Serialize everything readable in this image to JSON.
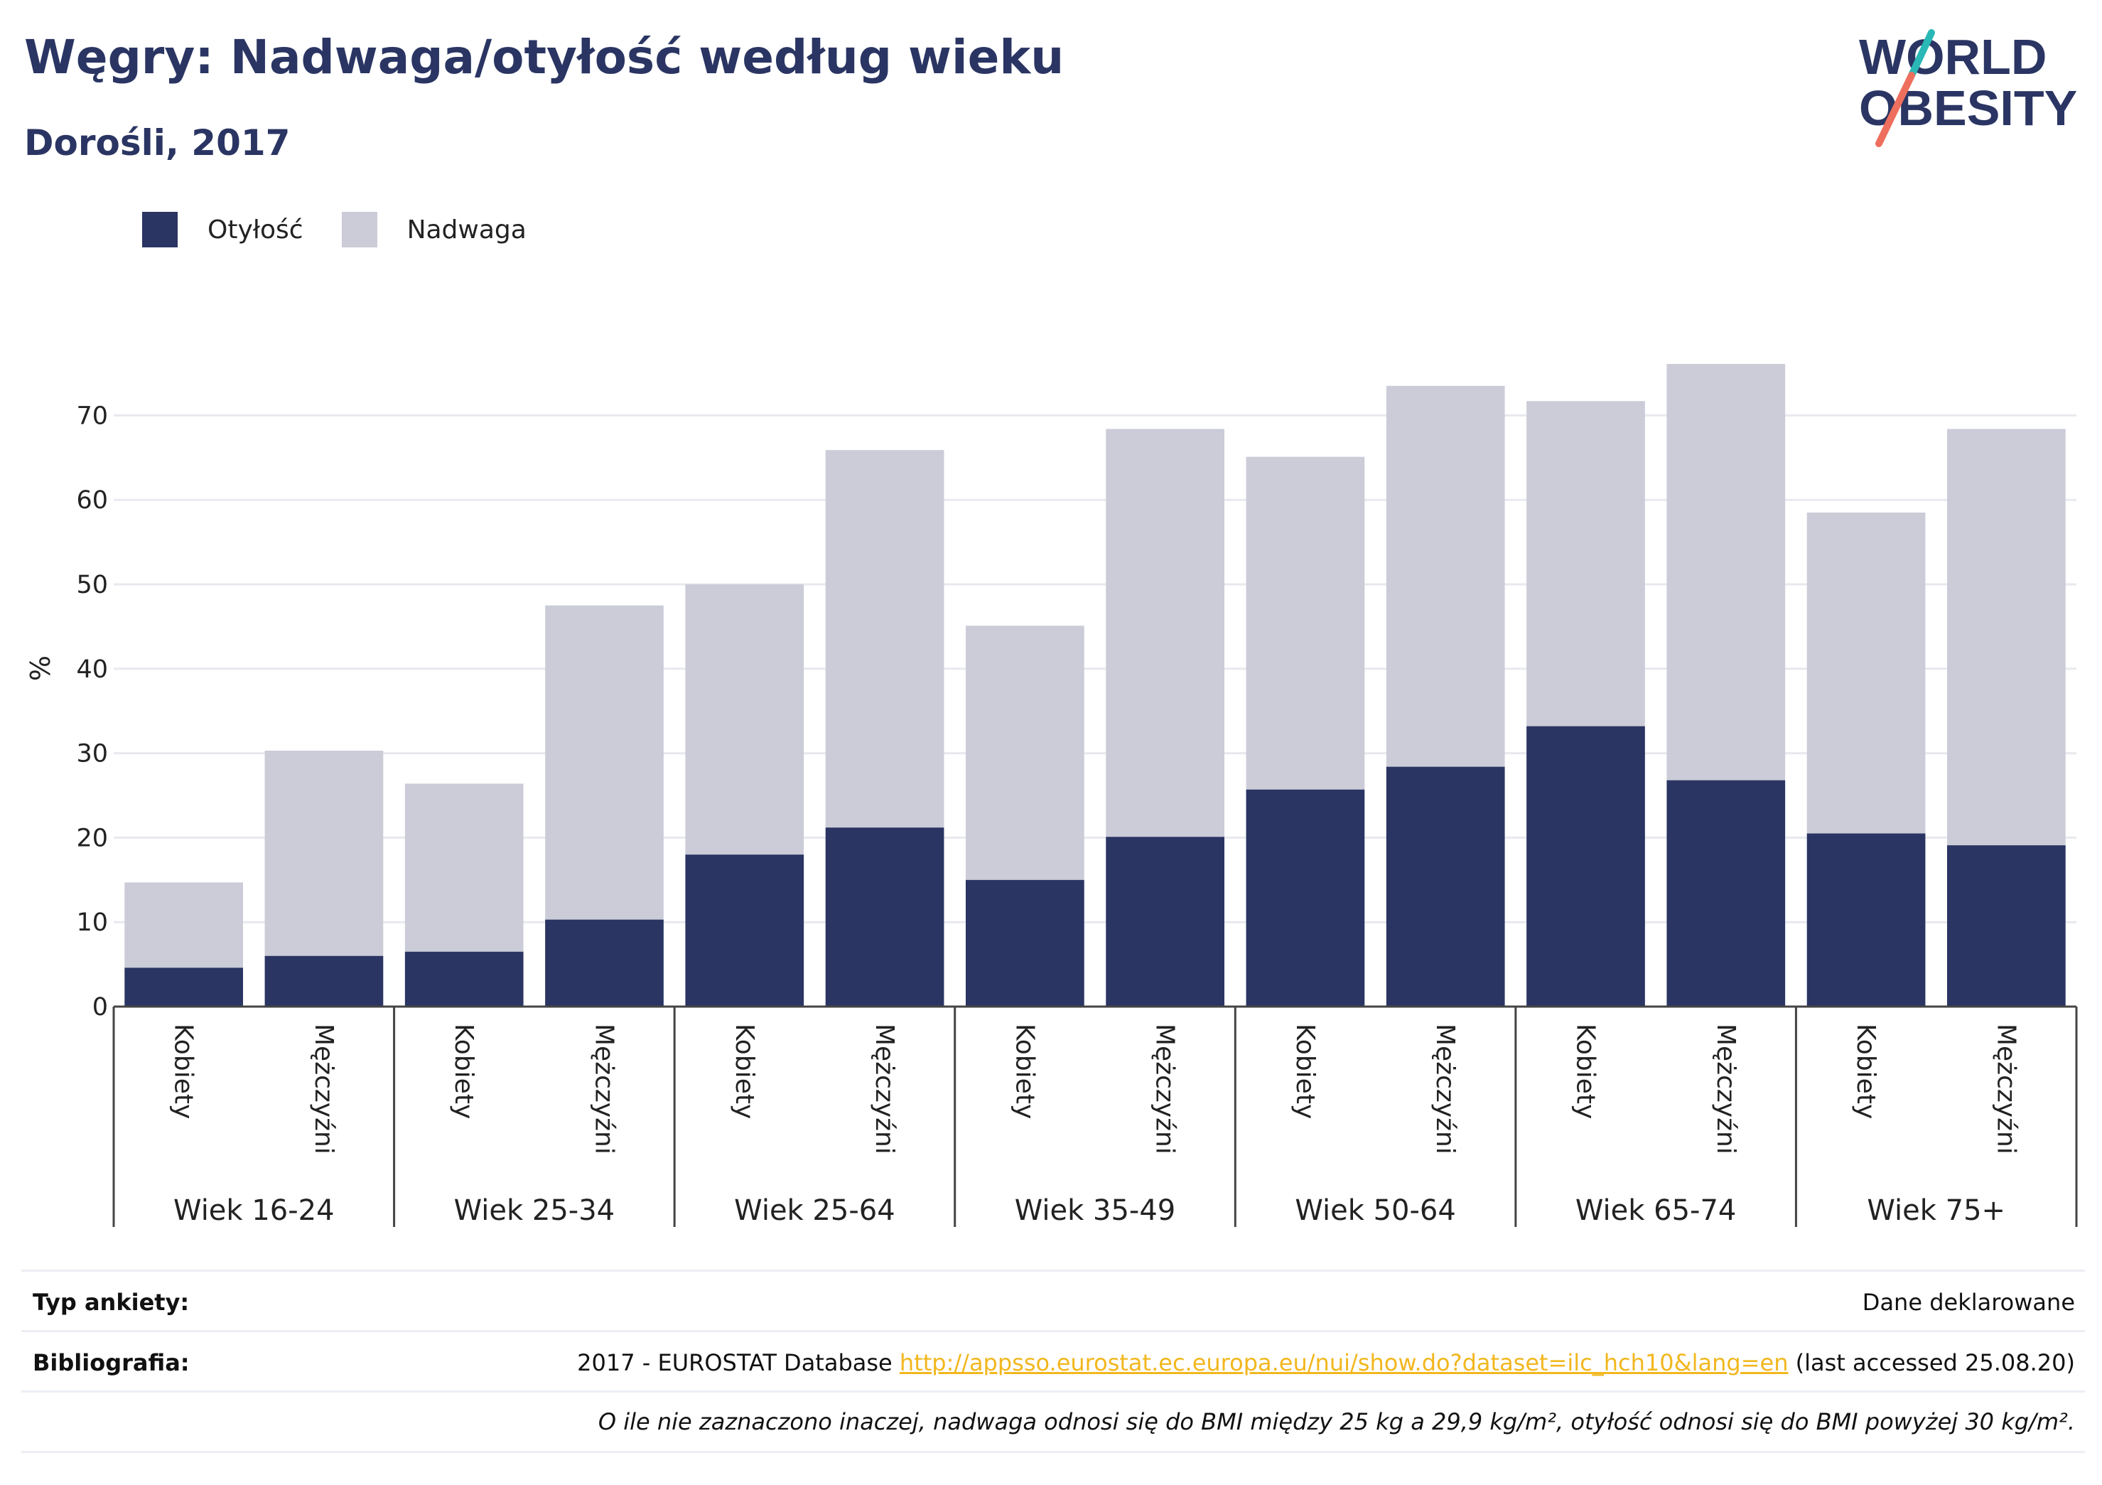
{
  "header": {
    "title": "Węgry: Nadwaga/otyłość według wieku",
    "subtitle": "Dorośli, 2017"
  },
  "logo": {
    "line1": "WORLD",
    "line2": "OBESITY"
  },
  "colors": {
    "obesity": "#2a3563",
    "overweight": "#cbccd8",
    "accent_teal": "#2ab8b6",
    "accent_coral": "#ee6f5d",
    "link": "#f2b71e"
  },
  "legend": [
    {
      "label": "Otyłość",
      "color": "#2a3563"
    },
    {
      "label": "Nadwaga",
      "color": "#cbccd8"
    }
  ],
  "chart_data": {
    "type": "bar",
    "stacked": true,
    "ylabel": "%",
    "ylim": [
      0,
      80
    ],
    "yticks": [
      0,
      10,
      20,
      30,
      40,
      50,
      60,
      70
    ],
    "grid": true,
    "legend_position": "top-left",
    "groups": [
      "Wiek 16-24",
      "Wiek 25-34",
      "Wiek 25-64",
      "Wiek 35-49",
      "Wiek 50-64",
      "Wiek 65-74",
      "Wiek 75+"
    ],
    "sub_categories": [
      "Kobiety",
      "Mężczyźni"
    ],
    "series": [
      {
        "name": "Otyłość",
        "values": [
          4.6,
          6.0,
          6.5,
          10.3,
          18.0,
          21.2,
          15.0,
          20.1,
          25.7,
          28.4,
          33.2,
          26.8,
          20.5,
          19.1
        ]
      },
      {
        "name": "Nadwaga",
        "values": [
          10.1,
          24.3,
          19.9,
          37.2,
          32.0,
          44.7,
          30.1,
          48.3,
          39.4,
          45.1,
          38.5,
          49.3,
          38.0,
          49.3
        ]
      }
    ]
  },
  "footer": {
    "survey_label": "Typ ankiety:",
    "survey_value": "Dane deklarowane",
    "bib_label": "Bibliografia:",
    "bib_prefix": "2017 - EUROSTAT Database ",
    "bib_link": "http://appsso.eurostat.ec.europa.eu/nui/show.do?dataset=ilc_hch10&lang=en",
    "bib_suffix": " (last accessed 25.08.20)",
    "note": "O ile nie zaznaczono inaczej, nadwaga odnosi się do BMI między 25 kg a 29,9 kg/m², otyłość odnosi się do BMI powyżej 30 kg/m²."
  }
}
